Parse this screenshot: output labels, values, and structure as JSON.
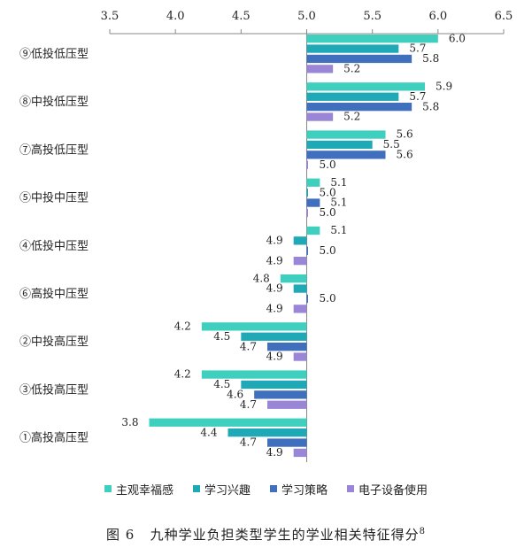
{
  "chart_data": {
    "type": "bar",
    "orientation": "horizontal",
    "xlim": [
      3.5,
      6.5
    ],
    "ticks": [
      "3.5",
      "4.0",
      "4.5",
      "5.0",
      "5.5",
      "6.0",
      "6.5"
    ],
    "baseline": 5.0,
    "legend_position": "bottom",
    "categories": [
      "⑨低投低压型",
      "⑧中投低压型",
      "⑦高投低压型",
      "⑤中投中压型",
      "④低投中压型",
      "⑥高投中压型",
      "②中投高压型",
      "③低投高压型",
      "①高投高压型"
    ],
    "series": [
      {
        "name": "主观幸福感",
        "color": "#3ecfbf",
        "values": [
          6.0,
          5.9,
          5.6,
          5.1,
          5.1,
          4.8,
          4.2,
          4.2,
          3.8
        ]
      },
      {
        "name": "学习兴趣",
        "color": "#1fa8b6",
        "values": [
          5.7,
          5.7,
          5.5,
          5.0,
          4.9,
          4.9,
          4.5,
          4.5,
          4.4
        ]
      },
      {
        "name": "学习策略",
        "color": "#3f6fbd",
        "values": [
          5.8,
          5.8,
          5.6,
          5.1,
          5.0,
          5.0,
          4.7,
          4.6,
          4.7
        ]
      },
      {
        "name": "电子设备使用",
        "color": "#9a86d6",
        "values": [
          5.2,
          5.2,
          5.0,
          5.0,
          4.9,
          4.9,
          4.9,
          4.7,
          4.9
        ]
      }
    ]
  },
  "caption": {
    "label": "图 6",
    "text": "九种学业负担类型学生的学业相关特征得分",
    "superscript": "8"
  }
}
